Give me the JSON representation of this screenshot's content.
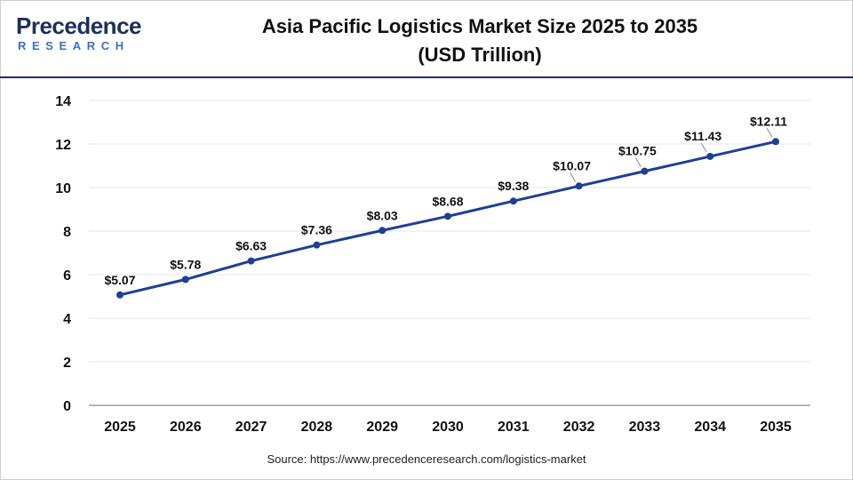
{
  "logo": {
    "top_text": "Precedence",
    "bottom_text": "RESEARCH"
  },
  "colors": {
    "line": "#1f3f96",
    "marker": "#1f3f96",
    "grid": "#e6e6e6",
    "axis": "#888888",
    "brand_dark": "#1f2f5c",
    "brand_light": "#3b6fc9"
  },
  "source_text": "Source: https://www.precedenceresearch.com/logistics-market",
  "chart_data": {
    "type": "line",
    "title": "Asia Pacific Logistics Market Size 2025 to 2035",
    "subtitle": "(USD Trillion)",
    "xlabel": "",
    "ylabel": "",
    "categories": [
      "2025",
      "2026",
      "2027",
      "2028",
      "2029",
      "2030",
      "2031",
      "2032",
      "2033",
      "2034",
      "2035"
    ],
    "series": [
      {
        "values": [
          5.07,
          5.78,
          6.63,
          7.36,
          8.03,
          8.68,
          9.38,
          10.07,
          10.75,
          11.43,
          12.11
        ],
        "labels": [
          "$5.07",
          "$5.78",
          "$6.63",
          "$7.36",
          "$8.03",
          "$8.68",
          "$9.38",
          "$10.07",
          "$10.75",
          "$11.43",
          "$12.11"
        ]
      }
    ],
    "ylim": [
      0,
      14
    ],
    "yticks": [
      "0",
      "2",
      "4",
      "6",
      "8",
      "10",
      "12",
      "14"
    ],
    "grid": true,
    "legend": "none"
  }
}
